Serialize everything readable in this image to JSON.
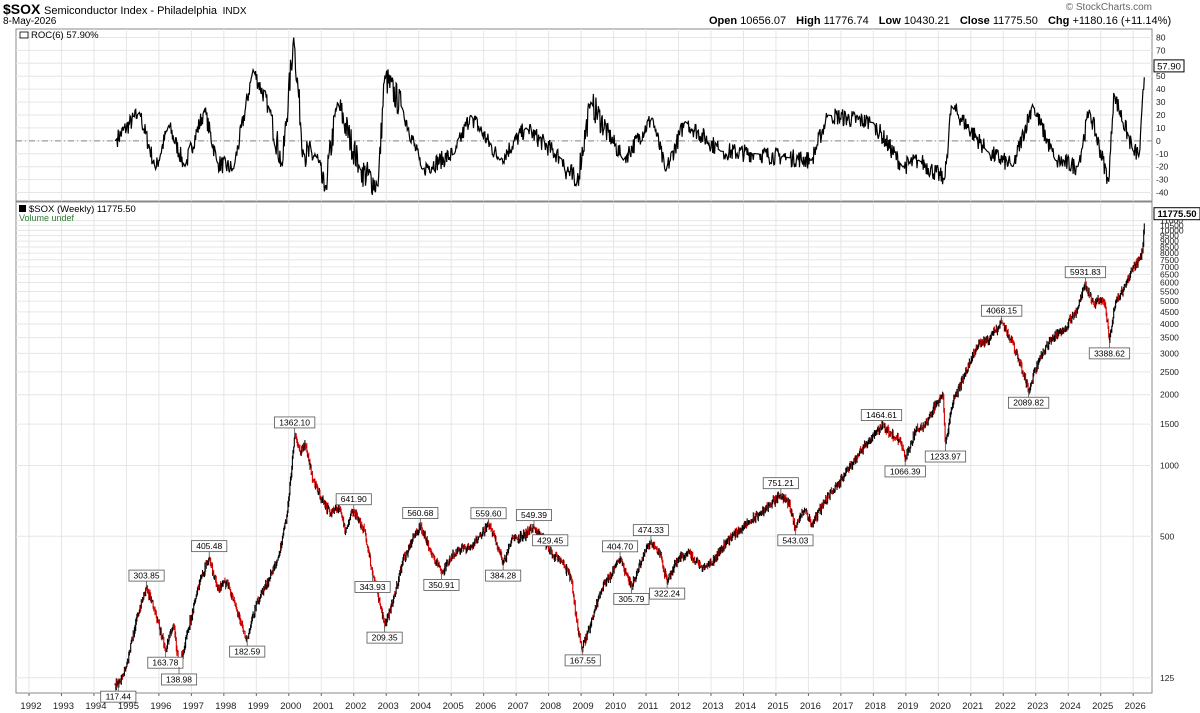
{
  "header": {
    "symbol": "$SOX",
    "name": "Semiconductor Index - Philadelphia",
    "exchange": "INDX",
    "date": "8-May-2026",
    "open_label": "Open",
    "open": "10656.07",
    "high_label": "High",
    "high": "11776.74",
    "low_label": "Low",
    "low": "10430.21",
    "close_label": "Close",
    "close": "11775.50",
    "chg_label": "Chg",
    "chg": "+1180.16 (+11.14%)",
    "brand": "© StockCharts.com"
  },
  "colors": {
    "up": "#000000",
    "down": "#d00000",
    "grid": "#e6e6e6",
    "axis": "#999999",
    "volume_text": "#2e7d32"
  },
  "chart_data": [
    {
      "type": "line",
      "panel": "ROC",
      "legend": "ROC(6) 57.90%",
      "last_value": "57.90",
      "ylim": [
        -45,
        85
      ],
      "yticks": [
        80,
        70,
        60,
        50,
        40,
        30,
        20,
        10,
        0,
        -10,
        -20,
        -30,
        -40
      ],
      "zero_line": true,
      "anchors": [
        [
          1994.65,
          0
        ],
        [
          1995.4,
          22
        ],
        [
          1995.9,
          -22
        ],
        [
          1996.3,
          12
        ],
        [
          1996.8,
          -20
        ],
        [
          1997.4,
          24
        ],
        [
          1997.8,
          -17
        ],
        [
          1998.3,
          -22
        ],
        [
          1998.9,
          55
        ],
        [
          1999.4,
          25
        ],
        [
          1999.8,
          -20
        ],
        [
          2000.15,
          80
        ],
        [
          2000.45,
          -10
        ],
        [
          2000.85,
          -12
        ],
        [
          2001.1,
          -40
        ],
        [
          2001.5,
          30
        ],
        [
          2002.2,
          -22
        ],
        [
          2002.75,
          -35
        ],
        [
          2002.95,
          50
        ],
        [
          2003.5,
          25
        ],
        [
          2004.1,
          -22
        ],
        [
          2005.1,
          -10
        ],
        [
          2005.6,
          20
        ],
        [
          2006.5,
          -15
        ],
        [
          2007.3,
          10
        ],
        [
          2008.4,
          -14
        ],
        [
          2008.85,
          -35
        ],
        [
          2009.3,
          30
        ],
        [
          2010.3,
          -15
        ],
        [
          2011.2,
          18
        ],
        [
          2011.6,
          -24
        ],
        [
          2012.2,
          15
        ],
        [
          2013.3,
          -8
        ],
        [
          2014.4,
          -10
        ],
        [
          2015.4,
          -13
        ],
        [
          2016.1,
          -15
        ],
        [
          2016.6,
          20
        ],
        [
          2018.0,
          14
        ],
        [
          2018.9,
          -20
        ],
        [
          2019.4,
          -15
        ],
        [
          2020.2,
          -30
        ],
        [
          2020.4,
          27
        ],
        [
          2021.5,
          -8
        ],
        [
          2022.3,
          -20
        ],
        [
          2022.9,
          28
        ],
        [
          2023.6,
          -15
        ],
        [
          2024.3,
          -20
        ],
        [
          2024.65,
          24
        ],
        [
          2025.25,
          -32
        ],
        [
          2025.4,
          37
        ],
        [
          2026.0,
          -8
        ],
        [
          2026.2,
          -10
        ],
        [
          2026.36,
          57.9
        ]
      ]
    },
    {
      "type": "line",
      "panel": "Price",
      "legend": "$SOX (Weekly) 11775.50",
      "volume_note": "Volume undef",
      "log_scale": true,
      "ylim": [
        112,
        12700
      ],
      "last_value": "11775.50",
      "yticks": [
        "125",
        "500",
        "1000",
        "1500",
        "2000",
        "2500",
        "3000",
        "3500",
        "4000",
        "4500",
        "5000",
        "5500",
        "6000",
        "6500",
        "7000",
        "7500",
        "8000",
        "8500",
        "9000",
        "9500",
        "10000",
        "10500",
        "11000"
      ],
      "x_tick_labels": [
        "1992",
        "1993",
        "1994",
        "1995",
        "1996",
        "1997",
        "1998",
        "1999",
        "2000",
        "2001",
        "2002",
        "2003",
        "2004",
        "2005",
        "2006",
        "2007",
        "2008",
        "2009",
        "2010",
        "2011",
        "2012",
        "2013",
        "2014",
        "2015",
        "2016",
        "2017",
        "2018",
        "2019",
        "2020",
        "2021",
        "2022",
        "2023",
        "2024",
        "2025",
        "2026"
      ],
      "anchors": [
        [
          1994.65,
          118
        ],
        [
          1994.75,
          117.44
        ],
        [
          1995.0,
          140
        ],
        [
          1995.3,
          220
        ],
        [
          1995.62,
          303.85
        ],
        [
          1995.9,
          235
        ],
        [
          1996.2,
          163.78
        ],
        [
          1996.45,
          210
        ],
        [
          1996.62,
          138.98
        ],
        [
          1996.9,
          200
        ],
        [
          1997.25,
          320
        ],
        [
          1997.55,
          405.48
        ],
        [
          1997.8,
          300
        ],
        [
          1998.1,
          320
        ],
        [
          1998.45,
          230
        ],
        [
          1998.72,
          182.59
        ],
        [
          1999.0,
          260
        ],
        [
          1999.4,
          330
        ],
        [
          1999.7,
          420
        ],
        [
          1999.95,
          620
        ],
        [
          2000.18,
          1362.1
        ],
        [
          2000.35,
          1150
        ],
        [
          2000.5,
          1250
        ],
        [
          2000.75,
          860
        ],
        [
          2001.0,
          720
        ],
        [
          2001.3,
          620
        ],
        [
          2001.55,
          660
        ],
        [
          2001.75,
          520
        ],
        [
          2001.95,
          643
        ],
        [
          2002.0,
          641.9
        ],
        [
          2002.35,
          520
        ],
        [
          2002.58,
          343.93
        ],
        [
          2002.8,
          260
        ],
        [
          2002.95,
          209.35
        ],
        [
          2003.2,
          260
        ],
        [
          2003.5,
          390
        ],
        [
          2003.8,
          480
        ],
        [
          2004.05,
          560.68
        ],
        [
          2004.4,
          420
        ],
        [
          2004.7,
          350.91
        ],
        [
          2005.2,
          440
        ],
        [
          2005.6,
          450
        ],
        [
          2005.9,
          510
        ],
        [
          2006.15,
          559.6
        ],
        [
          2006.4,
          470
        ],
        [
          2006.6,
          384.28
        ],
        [
          2006.9,
          490
        ],
        [
          2007.25,
          505
        ],
        [
          2007.55,
          549.39
        ],
        [
          2007.9,
          470
        ],
        [
          2008.05,
          429.45
        ],
        [
          2008.4,
          390
        ],
        [
          2008.7,
          330
        ],
        [
          2008.9,
          200
        ],
        [
          2009.05,
          167.55
        ],
        [
          2009.3,
          210
        ],
        [
          2009.6,
          290
        ],
        [
          2010.05,
          370
        ],
        [
          2010.2,
          404.7
        ],
        [
          2010.45,
          330
        ],
        [
          2010.55,
          305.79
        ],
        [
          2010.85,
          390
        ],
        [
          2011.15,
          474.33
        ],
        [
          2011.4,
          430
        ],
        [
          2011.65,
          322.24
        ],
        [
          2012.0,
          400
        ],
        [
          2012.3,
          430
        ],
        [
          2012.7,
          370
        ],
        [
          2013.0,
          380
        ],
        [
          2013.5,
          480
        ],
        [
          2014.0,
          550
        ],
        [
          2014.5,
          620
        ],
        [
          2015.15,
          751.21
        ],
        [
          2015.4,
          690
        ],
        [
          2015.6,
          543.03
        ],
        [
          2015.9,
          650
        ],
        [
          2016.1,
          560
        ],
        [
          2016.5,
          700
        ],
        [
          2016.9,
          830
        ],
        [
          2017.3,
          1000
        ],
        [
          2017.7,
          1200
        ],
        [
          2018.1,
          1400
        ],
        [
          2018.25,
          1464.61
        ],
        [
          2018.55,
          1370
        ],
        [
          2018.85,
          1266
        ],
        [
          2018.98,
          1066.39
        ],
        [
          2019.3,
          1400
        ],
        [
          2019.6,
          1500
        ],
        [
          2019.95,
          1850
        ],
        [
          2020.15,
          1950
        ],
        [
          2020.22,
          1233.97
        ],
        [
          2020.45,
          1850
        ],
        [
          2020.8,
          2400
        ],
        [
          2021.2,
          3200
        ],
        [
          2021.6,
          3500
        ],
        [
          2021.95,
          4068.15
        ],
        [
          2022.3,
          3300
        ],
        [
          2022.6,
          2500
        ],
        [
          2022.78,
          2089.82
        ],
        [
          2023.1,
          2800
        ],
        [
          2023.5,
          3500
        ],
        [
          2023.9,
          3800
        ],
        [
          2024.3,
          4700
        ],
        [
          2024.53,
          5931.83
        ],
        [
          2024.8,
          4800
        ],
        [
          2025.0,
          5100
        ],
        [
          2025.15,
          4700
        ],
        [
          2025.27,
          3388.62
        ],
        [
          2025.45,
          4900
        ],
        [
          2025.8,
          6000
        ],
        [
          2026.0,
          7000
        ],
        [
          2026.2,
          7600
        ],
        [
          2026.3,
          8400
        ],
        [
          2026.36,
          11775.5
        ]
      ],
      "annotations": [
        {
          "x": 1994.75,
          "y": 117.44,
          "label": "117.44",
          "pos": "below"
        },
        {
          "x": 1995.62,
          "y": 303.85,
          "label": "303.85",
          "pos": "above"
        },
        {
          "x": 1996.2,
          "y": 163.78,
          "label": "163.78",
          "pos": "below"
        },
        {
          "x": 1996.62,
          "y": 138.98,
          "label": "138.98",
          "pos": "below"
        },
        {
          "x": 1997.55,
          "y": 405.48,
          "label": "405.48",
          "pos": "above"
        },
        {
          "x": 1998.72,
          "y": 182.59,
          "label": "182.59",
          "pos": "below"
        },
        {
          "x": 2000.18,
          "y": 1362.1,
          "label": "1362.10",
          "pos": "above"
        },
        {
          "x": 2002.0,
          "y": 641.9,
          "label": "641.90",
          "pos": "above"
        },
        {
          "x": 2002.58,
          "y": 343.93,
          "label": "343.93",
          "pos": "below"
        },
        {
          "x": 2002.95,
          "y": 209.35,
          "label": "209.35",
          "pos": "below"
        },
        {
          "x": 2004.05,
          "y": 560.68,
          "label": "560.68",
          "pos": "above"
        },
        {
          "x": 2004.7,
          "y": 350.91,
          "label": "350.91",
          "pos": "below"
        },
        {
          "x": 2006.15,
          "y": 559.6,
          "label": "559.60",
          "pos": "above"
        },
        {
          "x": 2006.6,
          "y": 384.28,
          "label": "384.28",
          "pos": "below"
        },
        {
          "x": 2007.55,
          "y": 549.39,
          "label": "549.39",
          "pos": "above"
        },
        {
          "x": 2008.05,
          "y": 429.45,
          "label": "429.45",
          "pos": "above"
        },
        {
          "x": 2009.05,
          "y": 167.55,
          "label": "167.55",
          "pos": "below"
        },
        {
          "x": 2010.2,
          "y": 404.7,
          "label": "404.70",
          "pos": "above"
        },
        {
          "x": 2010.55,
          "y": 305.79,
          "label": "305.79",
          "pos": "below"
        },
        {
          "x": 2011.15,
          "y": 474.33,
          "label": "474.33",
          "pos": "above"
        },
        {
          "x": 2011.65,
          "y": 322.24,
          "label": "322.24",
          "pos": "below"
        },
        {
          "x": 2015.15,
          "y": 751.21,
          "label": "751.21",
          "pos": "above"
        },
        {
          "x": 2015.6,
          "y": 543.03,
          "label": "543.03",
          "pos": "below"
        },
        {
          "x": 2018.25,
          "y": 1464.61,
          "label": "1464.61",
          "pos": "above"
        },
        {
          "x": 2018.98,
          "y": 1066.39,
          "label": "1066.39",
          "pos": "below"
        },
        {
          "x": 2020.22,
          "y": 1233.97,
          "label": "1233.97",
          "pos": "below"
        },
        {
          "x": 2021.95,
          "y": 4068.15,
          "label": "4068.15",
          "pos": "above"
        },
        {
          "x": 2022.78,
          "y": 2089.82,
          "label": "2089.82",
          "pos": "below"
        },
        {
          "x": 2024.53,
          "y": 5931.83,
          "label": "5931.83",
          "pos": "above"
        },
        {
          "x": 2025.27,
          "y": 3388.62,
          "label": "3388.62",
          "pos": "below"
        }
      ]
    }
  ]
}
